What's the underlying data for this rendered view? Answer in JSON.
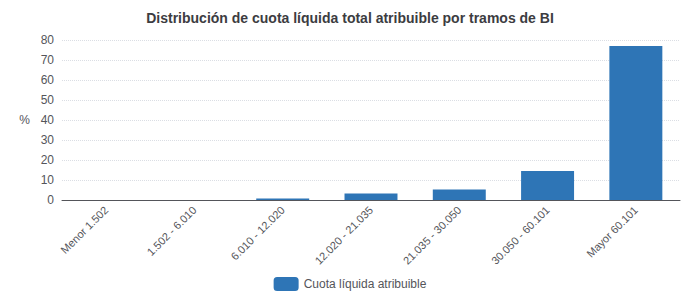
{
  "chart_data": {
    "type": "bar",
    "title": "Distribución de cuota líquida total atribuible por tramos de BI",
    "categories": [
      "Menor 1.502",
      "1.502 - 6.010",
      "6.010 - 12.020",
      "12.020 - 21.035",
      "21.035 - 30.050",
      "30.050 - 60.101",
      "Mayor 60.101"
    ],
    "series": [
      {
        "name": "Cuota líquida atribuible",
        "color": "#2e75b6",
        "values": [
          0.05,
          0.05,
          0.8,
          3.2,
          5.3,
          14.5,
          77.0
        ]
      }
    ],
    "ylabel": "%",
    "ylim": [
      0,
      80
    ],
    "yticks": [
      0,
      10,
      20,
      30,
      40,
      50,
      60,
      70,
      80
    ],
    "grid": true,
    "legend": "bottom"
  }
}
